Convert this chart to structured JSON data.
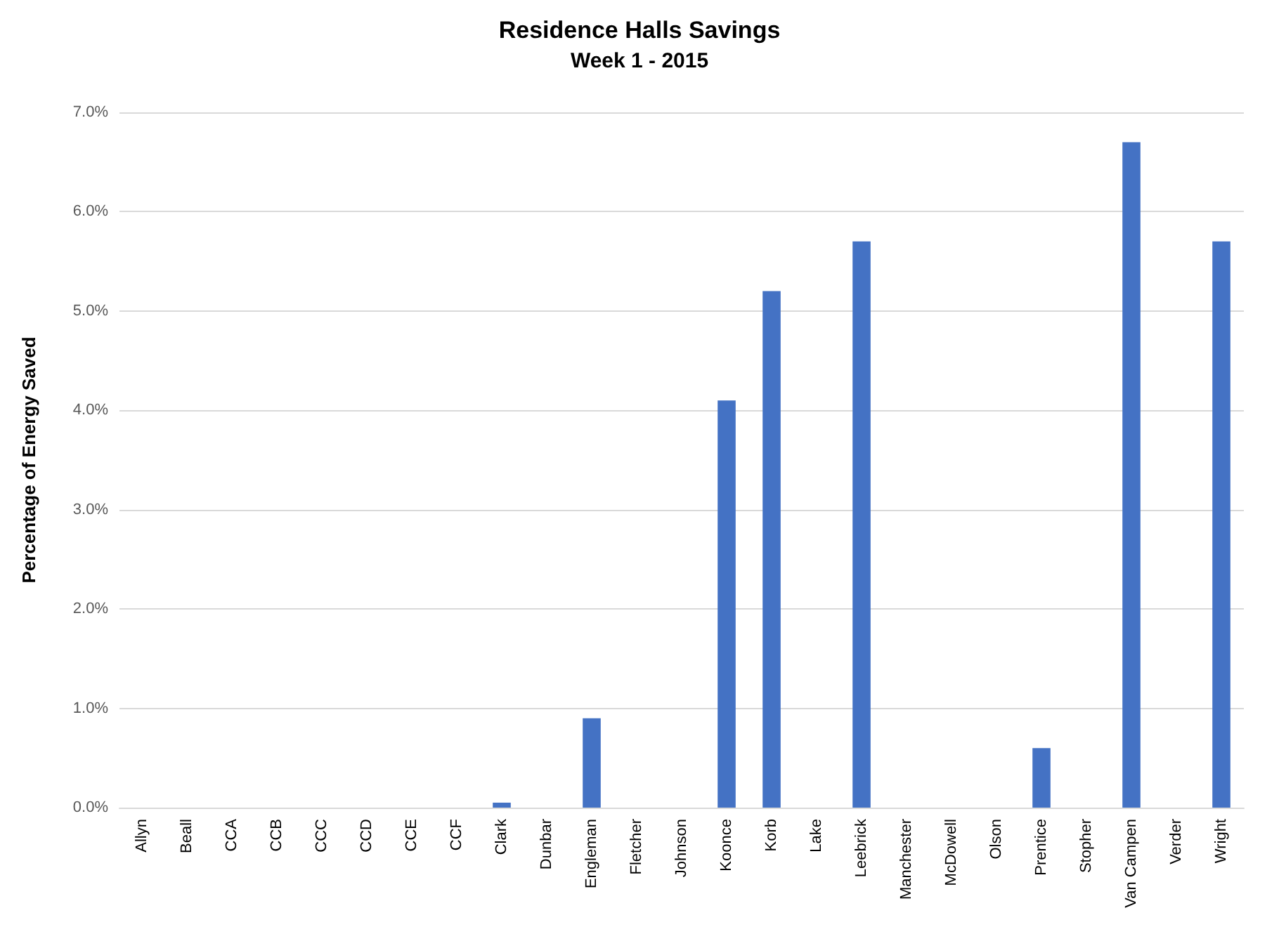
{
  "chart_data": {
    "type": "bar",
    "title": "Residence Halls Savings",
    "subtitle": "Week 1 - 2015",
    "ylabel": "Percentage of Energy Saved",
    "categories": [
      "Allyn",
      "Beall",
      "CCA",
      "CCB",
      "CCC",
      "CCD",
      "CCE",
      "CCF",
      "Clark",
      "Dunbar",
      "Engleman",
      "Fletcher",
      "Johnson",
      "Koonce",
      "Korb",
      "Lake",
      "Leebrick",
      "Manchester",
      "McDowell",
      "Olson",
      "Prentice",
      "Stopher",
      "Van Campen",
      "Verder",
      "Wright"
    ],
    "values": [
      0,
      0,
      0,
      0,
      0,
      0,
      0,
      0,
      0.05,
      0,
      0.9,
      0,
      0,
      4.1,
      5.2,
      0,
      5.7,
      0,
      0,
      0,
      0.6,
      0,
      6.7,
      0,
      5.7
    ],
    "color": "#4472c4",
    "ylim": [
      0,
      7
    ],
    "yticks": [
      {
        "value": 0,
        "label": "0.0%"
      },
      {
        "value": 1,
        "label": "1.0%"
      },
      {
        "value": 2,
        "label": "2.0%"
      },
      {
        "value": 3,
        "label": "3.0%"
      },
      {
        "value": 4,
        "label": "4.0%"
      },
      {
        "value": 5,
        "label": "5.0%"
      },
      {
        "value": 6,
        "label": "6.0%"
      },
      {
        "value": 7,
        "label": "7.0%"
      }
    ],
    "grid": "y"
  }
}
